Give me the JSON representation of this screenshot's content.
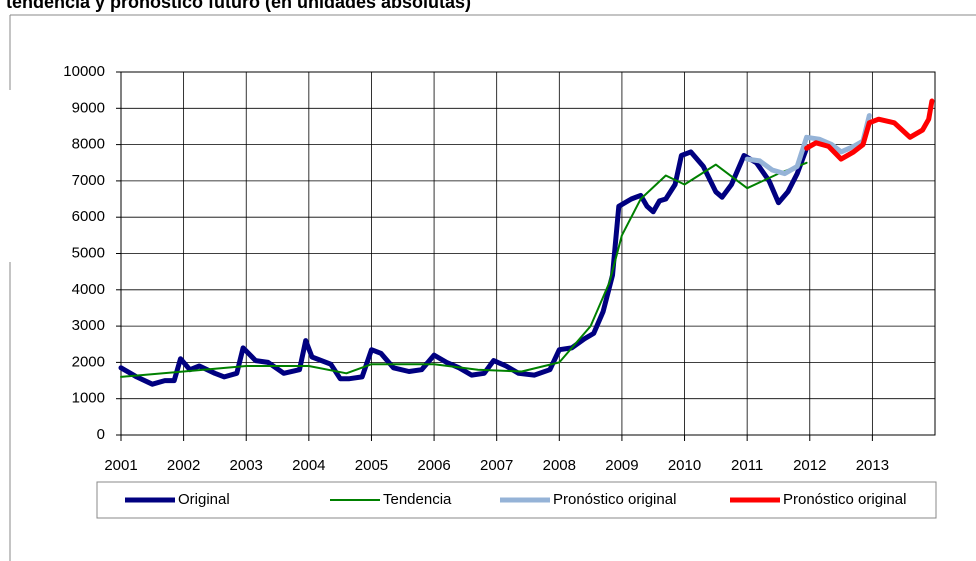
{
  "chart_data": {
    "type": "line",
    "title": "tendencia y pronóstico futuro (en unidades absolutas)",
    "xlim": [
      2001,
      2014
    ],
    "xticks": [
      2001,
      2002,
      2003,
      2004,
      2005,
      2006,
      2007,
      2008,
      2009,
      2010,
      2011,
      2012,
      2013
    ],
    "ylim": [
      0,
      10000
    ],
    "yticks": [
      0,
      1000,
      2000,
      3000,
      4000,
      5000,
      6000,
      7000,
      8000,
      9000,
      10000
    ],
    "grid": true,
    "legend": "bottom",
    "series": [
      {
        "name": "Original",
        "color": "#000080",
        "width": 5,
        "x": [
          2001.0,
          2001.25,
          2001.5,
          2001.7,
          2001.85,
          2001.95,
          2002.1,
          2002.25,
          2002.5,
          2002.65,
          2002.85,
          2002.95,
          2003.15,
          2003.35,
          2003.6,
          2003.85,
          2003.95,
          2004.05,
          2004.35,
          2004.5,
          2004.65,
          2004.85,
          2005.0,
          2005.15,
          2005.35,
          2005.6,
          2005.8,
          2006.0,
          2006.2,
          2006.4,
          2006.6,
          2006.8,
          2006.95,
          2007.15,
          2007.35,
          2007.6,
          2007.85,
          2008.0,
          2008.2,
          2008.4,
          2008.55,
          2008.7,
          2008.85,
          2008.95,
          2009.15,
          2009.3,
          2009.4,
          2009.5,
          2009.6,
          2009.7,
          2009.85,
          2009.95,
          2010.1,
          2010.3,
          2010.5,
          2010.6,
          2010.75,
          2010.95,
          2011.15,
          2011.35,
          2011.5,
          2011.65,
          2011.8,
          2011.95
        ],
        "values": [
          1850,
          1600,
          1400,
          1500,
          1500,
          2100,
          1800,
          1900,
          1700,
          1600,
          1700,
          2400,
          2050,
          2000,
          1700,
          1800,
          2600,
          2150,
          1950,
          1550,
          1550,
          1600,
          2350,
          2250,
          1850,
          1750,
          1800,
          2200,
          2000,
          1850,
          1650,
          1700,
          2050,
          1900,
          1700,
          1650,
          1800,
          2350,
          2400,
          2650,
          2800,
          3400,
          4400,
          6300,
          6500,
          6600,
          6300,
          6150,
          6450,
          6500,
          6900,
          7700,
          7800,
          7400,
          6700,
          6550,
          6900,
          7700,
          7500,
          7000,
          6400,
          6700,
          7200,
          7900
        ]
      },
      {
        "name": "Tendencia",
        "color": "#008000",
        "width": 2,
        "x": [
          2001.0,
          2002.0,
          2003.0,
          2004.0,
          2004.6,
          2005.0,
          2006.0,
          2006.7,
          2007.4,
          2008.0,
          2008.5,
          2008.8,
          2009.0,
          2009.3,
          2009.7,
          2010.0,
          2010.5,
          2011.0,
          2011.5,
          2011.95
        ],
        "values": [
          1600,
          1750,
          1900,
          1900,
          1700,
          1950,
          1950,
          1800,
          1750,
          2000,
          3000,
          4200,
          5500,
          6500,
          7150,
          6900,
          7450,
          6800,
          7200,
          7500
        ]
      },
      {
        "name": "Pronóstico original",
        "color": "#95b3d7",
        "width": 5,
        "x": [
          2011.0,
          2011.2,
          2011.4,
          2011.6,
          2011.8,
          2011.95,
          2012.15,
          2012.35,
          2012.5,
          2012.7,
          2012.85,
          2012.95
        ],
        "values": [
          7600,
          7550,
          7300,
          7200,
          7400,
          8200,
          8150,
          8000,
          7800,
          7950,
          8100,
          8800
        ]
      },
      {
        "name": "Pronóstico original",
        "color": "#ff0000",
        "width": 5,
        "x": [
          2011.95,
          2012.1,
          2012.3,
          2012.5,
          2012.7,
          2012.85,
          2012.95,
          2013.1,
          2013.35,
          2013.6,
          2013.8,
          2013.9,
          2013.95
        ],
        "values": [
          7900,
          8050,
          7950,
          7600,
          7800,
          8000,
          8600,
          8700,
          8600,
          8200,
          8400,
          8700,
          9200
        ]
      }
    ]
  }
}
